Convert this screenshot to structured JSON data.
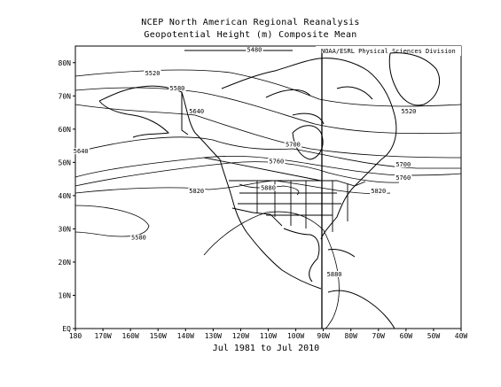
{
  "title": "NCEP North American Regional Reanalysis",
  "subtitle": "Geopotential Height (m) Composite Mean",
  "credit": "NOAA/ESRL Physical Sciences Division",
  "footer": "Jul 1981 to Jul 2010",
  "colors": {
    "background": "#ffffff",
    "lines": "#000000"
  },
  "axes": {
    "lat_labels": [
      "EQ",
      "10N",
      "20N",
      "30N",
      "40N",
      "50N",
      "60N",
      "70N",
      "80N"
    ],
    "lon_labels": [
      "180",
      "170W",
      "160W",
      "150W",
      "140W",
      "130W",
      "120W",
      "110W",
      "100W",
      "90W",
      "80W",
      "70W",
      "60W",
      "50W",
      "40W"
    ]
  },
  "contours": [
    {
      "value": "5480",
      "lat": 83.5,
      "lon": -115
    },
    {
      "value": "5520",
      "lat": 76.5,
      "lon": -152
    },
    {
      "value": "5580",
      "lat": 72,
      "lon": -143
    },
    {
      "value": "5640",
      "lat": 65,
      "lon": -136
    },
    {
      "value": "5640",
      "lat": 53,
      "lon": -178
    },
    {
      "value": "5700",
      "lat": 55,
      "lon": -101
    },
    {
      "value": "5760",
      "lat": 50,
      "lon": -107
    },
    {
      "value": "5820",
      "lat": 41,
      "lon": -136
    },
    {
      "value": "5880",
      "lat": 42,
      "lon": -110
    },
    {
      "value": "5580",
      "lat": 27,
      "lon": -157
    },
    {
      "value": "5520",
      "lat": 65,
      "lon": -59
    },
    {
      "value": "5700",
      "lat": 49,
      "lon": -61
    },
    {
      "value": "5760",
      "lat": 45,
      "lon": -61
    },
    {
      "value": "5820",
      "lat": 41,
      "lon": -70
    },
    {
      "value": "5880",
      "lat": 16,
      "lon": -86
    }
  ]
}
